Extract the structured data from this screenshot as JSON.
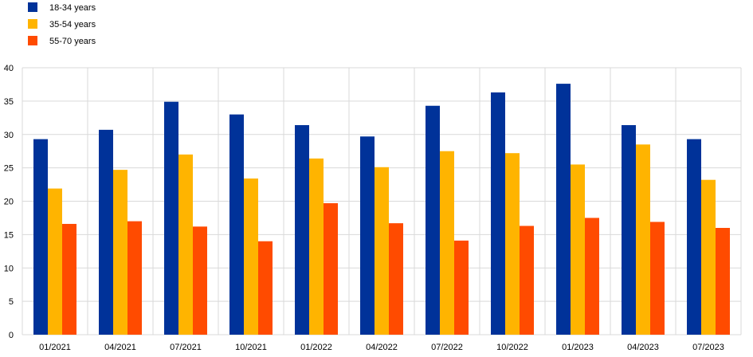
{
  "chart_data": {
    "type": "bar",
    "categories": [
      "01/2021",
      "04/2021",
      "07/2021",
      "10/2021",
      "01/2022",
      "04/2022",
      "07/2022",
      "10/2022",
      "01/2023",
      "04/2023",
      "07/2023"
    ],
    "series": [
      {
        "name": "18-34 years",
        "color": "#003299",
        "values": [
          29.3,
          30.7,
          34.9,
          33.0,
          31.4,
          29.7,
          34.3,
          36.3,
          37.6,
          31.4,
          29.3
        ]
      },
      {
        "name": "35-54 years",
        "color": "#FFB400",
        "values": [
          21.9,
          24.7,
          27.0,
          23.4,
          26.4,
          25.1,
          27.5,
          27.2,
          25.5,
          28.5,
          23.2
        ]
      },
      {
        "name": "55-70 years",
        "color": "#FF4B00",
        "values": [
          16.6,
          17.0,
          16.2,
          14.0,
          19.7,
          16.7,
          14.1,
          16.3,
          17.5,
          16.9,
          16.0
        ]
      }
    ],
    "ylim": [
      0,
      40
    ],
    "yticks": [
      0,
      5,
      10,
      15,
      20,
      25,
      30,
      35,
      40
    ],
    "grid": true,
    "legend_position": "top-left"
  }
}
